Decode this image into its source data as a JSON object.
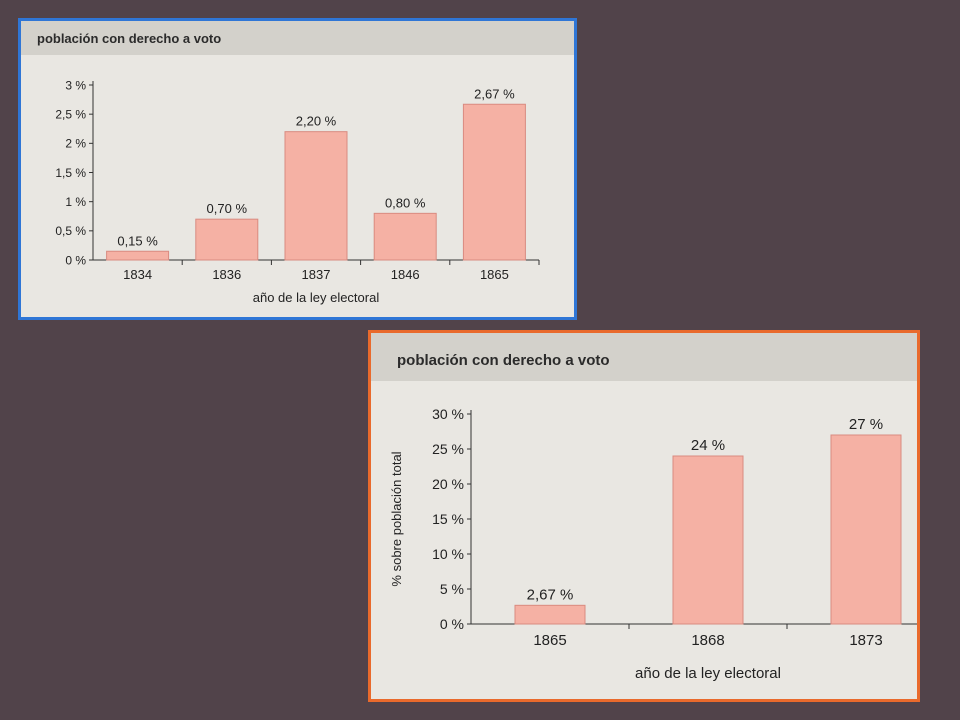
{
  "chart_data": [
    {
      "type": "bar",
      "title": "población con derecho a voto",
      "xlabel": "año de la ley electoral",
      "ylabel": "",
      "categories": [
        "1834",
        "1836",
        "1837",
        "1846",
        "1865"
      ],
      "values": [
        0.15,
        0.7,
        2.2,
        0.8,
        2.67
      ],
      "value_labels": [
        "0,15 %",
        "0,70 %",
        "2,20 %",
        "0,80 %",
        "2,67 %"
      ],
      "yticks": [
        0,
        0.5,
        1,
        1.5,
        2,
        2.5,
        3
      ],
      "ytick_labels": [
        "0 %",
        "0,5 %",
        "1 %",
        "1,5 %",
        "2 %",
        "2,5 %",
        "3 %"
      ],
      "ylim": [
        0,
        3
      ],
      "bar_color": "#f5b1a4",
      "border_color": "#2f76d6"
    },
    {
      "type": "bar",
      "title": "población con derecho a voto",
      "xlabel": "año de la ley electoral",
      "ylabel": "% sobre población total",
      "categories": [
        "1865",
        "1868",
        "1873"
      ],
      "values": [
        2.67,
        24,
        27
      ],
      "value_labels": [
        "2,67 %",
        "24 %",
        "27 %"
      ],
      "yticks": [
        0,
        5,
        10,
        15,
        20,
        25,
        30
      ],
      "ytick_labels": [
        "0 %",
        "5 %",
        "10 %",
        "15 %",
        "20 %",
        "25 %",
        "30 %"
      ],
      "ylim": [
        0,
        30
      ],
      "bar_color": "#f5b1a4",
      "border_color": "#e96a2c"
    }
  ]
}
